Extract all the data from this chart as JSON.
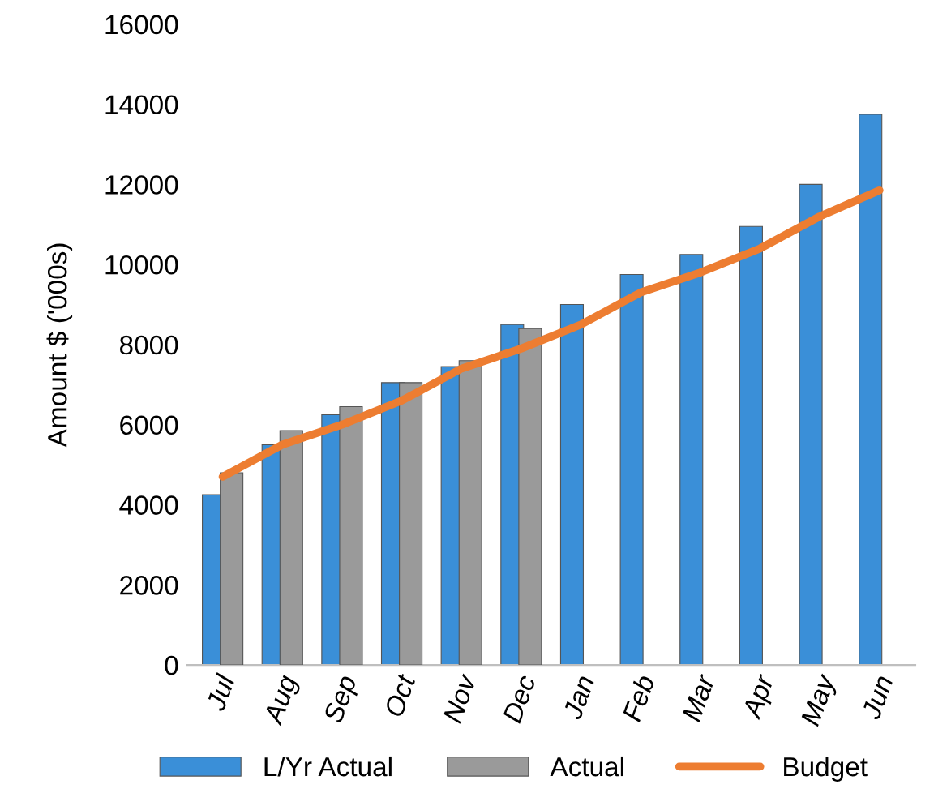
{
  "chart_data": {
    "type": "bar",
    "ylabel": "Amount $ ('000s)",
    "categories": [
      "Jul",
      "Aug",
      "Sep",
      "Oct",
      "Nov",
      "Dec",
      "Jan",
      "Feb",
      "Mar",
      "Apr",
      "May",
      "Jun"
    ],
    "series": [
      {
        "name": "L/Yr Actual",
        "color": "#3a8fd8",
        "values": [
          4250,
          5500,
          6250,
          7050,
          7450,
          8500,
          9000,
          9750,
          10250,
          10950,
          12000,
          13750
        ]
      },
      {
        "name": "Actual",
        "color": "#9a9a9a",
        "values": [
          4800,
          5850,
          6450,
          7050,
          7600,
          8400,
          null,
          null,
          null,
          null,
          null,
          null
        ]
      },
      {
        "name": "Budget",
        "type": "line",
        "color": "#ed7d31",
        "values": [
          4700,
          5500,
          6000,
          6600,
          7400,
          7900,
          8500,
          9300,
          9800,
          10400,
          11200,
          11850
        ]
      }
    ],
    "ylim": [
      0,
      16000
    ],
    "yticks": [
      0,
      2000,
      4000,
      6000,
      8000,
      10000,
      12000,
      14000,
      16000
    ],
    "grid": false,
    "legend": "bottom"
  }
}
